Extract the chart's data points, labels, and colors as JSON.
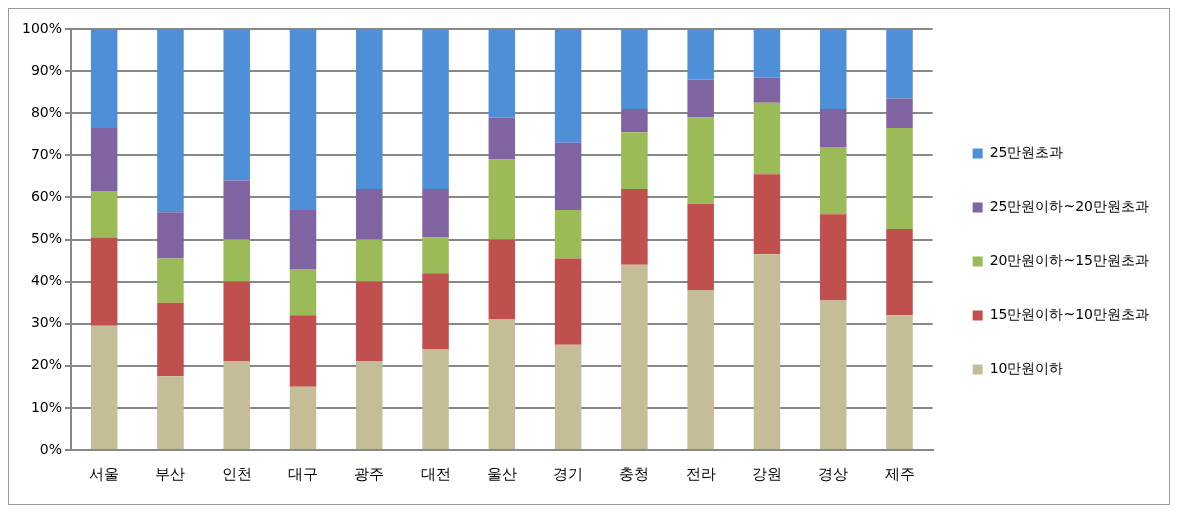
{
  "chart_data": {
    "type": "bar",
    "stacked": true,
    "categories": [
      "서울",
      "부산",
      "인천",
      "대구",
      "광주",
      "대전",
      "울산",
      "경기",
      "충청",
      "전라",
      "강원",
      "경상",
      "제주"
    ],
    "series": [
      {
        "name": "10만원이하",
        "color": "#c4bd97",
        "values": [
          29.5,
          17.5,
          21,
          15,
          21,
          24,
          31,
          25,
          44,
          38,
          46.5,
          35.5,
          32
        ]
      },
      {
        "name": "15만원이하~10만원초과",
        "color": "#c0504d",
        "values": [
          21,
          17.5,
          19,
          17,
          19,
          18,
          19,
          20.5,
          18,
          20.5,
          19,
          20.5,
          20.5
        ]
      },
      {
        "name": "20만원이하~15만원초과",
        "color": "#9bbb59",
        "values": [
          11,
          10.5,
          10,
          11,
          10,
          8.5,
          19,
          11.5,
          13.5,
          20.5,
          17,
          16,
          24
        ]
      },
      {
        "name": "25만원이하~20만원초과",
        "color": "#8064a2",
        "values": [
          15,
          11,
          14,
          14,
          12,
          11.5,
          10,
          16,
          5.5,
          9,
          6,
          9,
          7
        ]
      },
      {
        "name": "25만원초과",
        "color": "#4f8fd8",
        "values": [
          23.5,
          43.5,
          36,
          43,
          38,
          38,
          21,
          27,
          19,
          12,
          11.5,
          19,
          16.5
        ]
      }
    ],
    "ylim": [
      0,
      100
    ],
    "yticks": [
      {
        "value": 0,
        "label": "0%"
      },
      {
        "value": 10,
        "label": "10%"
      },
      {
        "value": 20,
        "label": "20%"
      },
      {
        "value": 30,
        "label": "30%"
      },
      {
        "value": 40,
        "label": "40%"
      },
      {
        "value": 50,
        "label": "50%"
      },
      {
        "value": 60,
        "label": "60%"
      },
      {
        "value": 70,
        "label": "70%"
      },
      {
        "value": 80,
        "label": "80%"
      },
      {
        "value": 90,
        "label": "90%"
      },
      {
        "value": 100,
        "label": "100%"
      }
    ],
    "grid": "y",
    "legend": "right"
  }
}
